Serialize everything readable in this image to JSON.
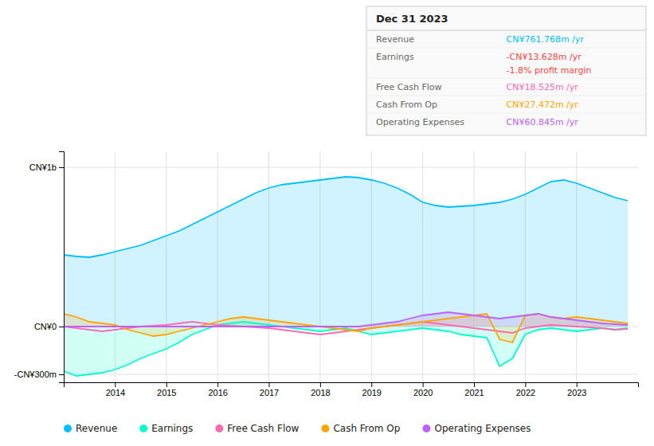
{
  "chart_data": {
    "type": "area",
    "title": "Dec 31 2023",
    "x": [
      2013.0,
      2013.25,
      2013.5,
      2013.75,
      2014.0,
      2014.25,
      2014.5,
      2014.75,
      2015.0,
      2015.25,
      2015.5,
      2015.75,
      2016.0,
      2016.25,
      2016.5,
      2016.75,
      2017.0,
      2017.25,
      2017.5,
      2017.75,
      2018.0,
      2018.25,
      2018.5,
      2018.75,
      2019.0,
      2019.25,
      2019.5,
      2019.75,
      2020.0,
      2020.25,
      2020.5,
      2020.75,
      2021.0,
      2021.25,
      2021.5,
      2021.75,
      2022.0,
      2022.25,
      2022.5,
      2022.75,
      2023.0,
      2023.25,
      2023.5,
      2023.75,
      2024.0
    ],
    "series": [
      {
        "name": "Revenue",
        "color": "#00bfff",
        "type": "area",
        "values": [
          450,
          440,
          435,
          450,
          470,
          490,
          510,
          540,
          570,
          600,
          640,
          680,
          720,
          760,
          800,
          840,
          870,
          890,
          900,
          910,
          920,
          930,
          940,
          935,
          920,
          900,
          870,
          830,
          780,
          760,
          750,
          755,
          760,
          770,
          780,
          800,
          830,
          870,
          910,
          920,
          900,
          870,
          840,
          810,
          790
        ]
      },
      {
        "name": "Earnings",
        "color": "#00ffcc",
        "type": "area",
        "values": [
          -280,
          -310,
          -300,
          -290,
          -270,
          -240,
          -200,
          -170,
          -140,
          -100,
          -50,
          -20,
          10,
          20,
          30,
          20,
          10,
          0,
          -10,
          -20,
          -30,
          -20,
          -10,
          -30,
          -50,
          -40,
          -30,
          -20,
          -10,
          -20,
          -30,
          -50,
          -60,
          -70,
          -250,
          -200,
          -50,
          -20,
          -10,
          -20,
          -30,
          -20,
          -10,
          -20,
          -10
        ]
      },
      {
        "name": "Free Cash Flow",
        "color": "#ff69b4",
        "type": "line",
        "values": [
          0,
          -10,
          -20,
          -30,
          -20,
          -10,
          0,
          5,
          10,
          20,
          30,
          20,
          10,
          5,
          0,
          -5,
          -10,
          -20,
          -30,
          -40,
          -50,
          -40,
          -30,
          -20,
          -10,
          0,
          10,
          20,
          30,
          20,
          10,
          0,
          -10,
          -20,
          -30,
          -40,
          -10,
          0,
          10,
          5,
          0,
          -5,
          -10,
          -20,
          -15
        ]
      },
      {
        "name": "Cash From Op",
        "color": "#ffa500",
        "type": "area",
        "values": [
          80,
          60,
          30,
          20,
          10,
          -20,
          -40,
          -60,
          -50,
          -30,
          -10,
          10,
          30,
          50,
          60,
          50,
          40,
          30,
          20,
          10,
          0,
          -10,
          -20,
          -30,
          -10,
          0,
          10,
          20,
          30,
          40,
          50,
          60,
          70,
          80,
          -80,
          -100,
          70,
          80,
          60,
          50,
          60,
          50,
          40,
          30,
          20
        ]
      },
      {
        "name": "Operating Expenses",
        "color": "#bf5fff",
        "type": "area",
        "values": [
          0,
          0,
          0,
          0,
          0,
          0,
          0,
          0,
          0,
          0,
          0,
          0,
          0,
          0,
          0,
          0,
          0,
          0,
          0,
          0,
          0,
          0,
          0,
          0,
          10,
          20,
          30,
          50,
          70,
          80,
          90,
          80,
          70,
          60,
          50,
          60,
          70,
          80,
          60,
          50,
          40,
          30,
          20,
          15,
          10
        ]
      }
    ],
    "xlim": [
      2013.0,
      2024.2
    ],
    "xticks": [
      2014,
      2015,
      2016,
      2017,
      2018,
      2019,
      2020,
      2021,
      2022,
      2023
    ],
    "ylim": [
      -350,
      1100
    ],
    "yticks": [
      {
        "value": -300,
        "label": "-CN¥300m"
      },
      {
        "value": 0,
        "label": "CN¥0"
      },
      {
        "value": 1000,
        "label": "CN¥1b"
      }
    ],
    "grid": true,
    "legend": "bottom",
    "annotations": [
      {
        "label": "Revenue",
        "text": "CN¥761.768m /yr",
        "color": "#00bfff"
      },
      {
        "label": "Earnings",
        "text": "-CN¥13.628m /yr",
        "color": "#ff4444",
        "note": "-1.8% profit margin",
        "note_color": "#ff4444"
      },
      {
        "label": "Free Cash Flow",
        "text": "CN¥18.525m /yr",
        "color": "#ff69b4"
      },
      {
        "label": "Cash From Op",
        "text": "CN¥27.472m /yr",
        "color": "#ffa500"
      },
      {
        "label": "Operating Expenses",
        "text": "CN¥60.845m /yr",
        "color": "#bf5fff"
      }
    ]
  }
}
